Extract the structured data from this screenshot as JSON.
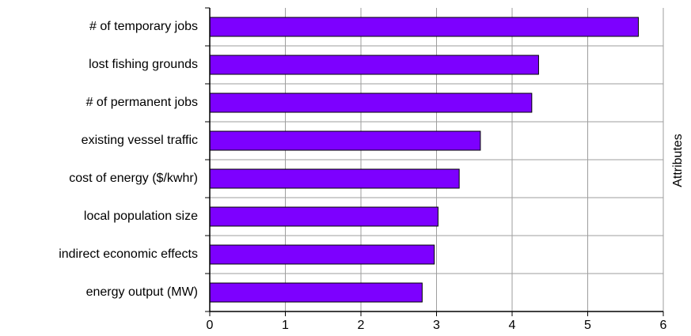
{
  "chart_data": {
    "type": "bar",
    "orientation": "horizontal",
    "categories": [
      "# of temporary jobs",
      "lost fishing grounds",
      "# of permanent jobs",
      "existing vessel traffic",
      "cost of energy ($/kwhr)",
      "local population size",
      "indirect economic effects",
      "energy output (MW)"
    ],
    "values": [
      5.67,
      4.35,
      4.26,
      3.58,
      3.3,
      3.02,
      2.97,
      2.81
    ],
    "title": "",
    "xlabel": "",
    "ylabel": "Attributes",
    "xlim": [
      0,
      6
    ],
    "xticks": [
      "0",
      "1",
      "2",
      "3",
      "4",
      "5",
      "6"
    ],
    "grid": true,
    "bar_color": "#7d00ff",
    "bar_border_color": "#000000",
    "grid_color": "#9e9e9e"
  }
}
